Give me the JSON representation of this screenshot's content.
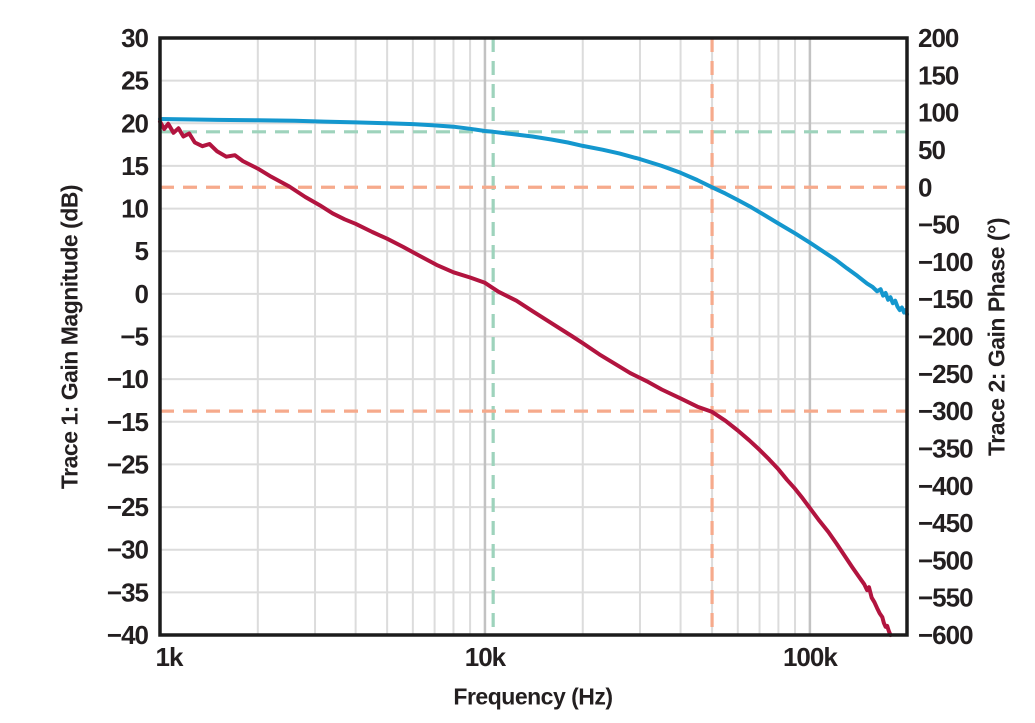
{
  "chart_data": {
    "type": "line",
    "title": "",
    "xlabel": "Frequency (Hz)",
    "x_axis": {
      "scale": "log",
      "range_hz": [
        1000,
        199000
      ],
      "major_ticks": [
        {
          "hz": 1000,
          "label": "1k"
        },
        {
          "hz": 10000,
          "label": "10k"
        },
        {
          "hz": 100000,
          "label": "100k"
        }
      ],
      "minor_gridlines_hz": [
        2000,
        3000,
        4000,
        5000,
        6000,
        7000,
        8000,
        9000,
        20000,
        30000,
        40000,
        50000,
        60000,
        70000,
        80000,
        90000
      ]
    },
    "y_axis_left": {
      "label": "Trace 1: Gain Magnitude (dB)",
      "range_db": [
        -40,
        30
      ],
      "ticks": [
        {
          "db": 30,
          "label": "30"
        },
        {
          "db": 25,
          "label": "25"
        },
        {
          "db": 20,
          "label": "20"
        },
        {
          "db": 15,
          "label": "15"
        },
        {
          "db": 10,
          "label": "10"
        },
        {
          "db": 5,
          "label": "5"
        },
        {
          "db": 0,
          "label": "0"
        },
        {
          "db": -5,
          "label": "−5"
        },
        {
          "db": -10,
          "label": "−10"
        },
        {
          "db": -15,
          "label": "−15"
        },
        {
          "db": -20,
          "label": "−25"
        },
        {
          "db": -25,
          "label": "−25"
        },
        {
          "db": -30,
          "label": "−30"
        },
        {
          "db": -35,
          "label": "−35"
        },
        {
          "db": -40,
          "label": "−40"
        }
      ]
    },
    "y_axis_right": {
      "label": "Trace 2: Gain Phase (°)",
      "range_deg": [
        -600,
        200
      ],
      "ticks": [
        {
          "deg": 200,
          "label": "200"
        },
        {
          "deg": 150,
          "label": "150"
        },
        {
          "deg": 100,
          "label": "100"
        },
        {
          "deg": 50,
          "label": "50"
        },
        {
          "deg": 0,
          "label": "0"
        },
        {
          "deg": -50,
          "label": "−50"
        },
        {
          "deg": -100,
          "label": "−100"
        },
        {
          "deg": -150,
          "label": "−150"
        },
        {
          "deg": -200,
          "label": "−200"
        },
        {
          "deg": -250,
          "label": "−250"
        },
        {
          "deg": -300,
          "label": "−300"
        },
        {
          "deg": -350,
          "label": "−350"
        },
        {
          "deg": -400,
          "label": "−400"
        },
        {
          "deg": -450,
          "label": "−450"
        },
        {
          "deg": -500,
          "label": "−500"
        },
        {
          "deg": -550,
          "label": "−550"
        },
        {
          "deg": -600,
          "label": "−600"
        }
      ]
    },
    "cursors": [
      {
        "id": "green",
        "color": "#9ED3BC",
        "vertical_hz": 10600,
        "horizontal_gain_db": 19.0
      },
      {
        "id": "orange",
        "color": "#F6AA8C",
        "vertical_hz": 50000,
        "horizontal_gain_db": 12.5,
        "horizontal_phase_deg": -300
      }
    ],
    "series": [
      {
        "name": "Trace 1: Gain Magnitude",
        "axis": "left",
        "unit": "dB",
        "color": "#1497CE",
        "points": [
          [
            1000,
            20.5
          ],
          [
            1200,
            20.45
          ],
          [
            1500,
            20.4
          ],
          [
            2000,
            20.35
          ],
          [
            2600,
            20.3
          ],
          [
            3200,
            20.2
          ],
          [
            4000,
            20.1
          ],
          [
            5000,
            20.0
          ],
          [
            6000,
            19.9
          ],
          [
            7000,
            19.75
          ],
          [
            8000,
            19.6
          ],
          [
            9000,
            19.35
          ],
          [
            10000,
            19.1
          ],
          [
            10600,
            19.0
          ],
          [
            12000,
            18.75
          ],
          [
            14000,
            18.45
          ],
          [
            16000,
            18.1
          ],
          [
            18000,
            17.75
          ],
          [
            20000,
            17.35
          ],
          [
            23000,
            16.9
          ],
          [
            26000,
            16.45
          ],
          [
            30000,
            15.8
          ],
          [
            35000,
            15.0
          ],
          [
            40000,
            14.2
          ],
          [
            45000,
            13.35
          ],
          [
            50000,
            12.5
          ],
          [
            55000,
            11.75
          ],
          [
            60000,
            11.0
          ],
          [
            66000,
            10.15
          ],
          [
            72000,
            9.3
          ],
          [
            80000,
            8.25
          ],
          [
            90000,
            7.1
          ],
          [
            100000,
            6.0
          ],
          [
            110000,
            4.95
          ],
          [
            120000,
            4.0
          ],
          [
            130000,
            3.0
          ],
          [
            140000,
            2.1
          ],
          [
            150000,
            1.2
          ],
          [
            156000,
            0.8
          ],
          [
            161000,
            0.3
          ],
          [
            165000,
            0.55
          ],
          [
            168000,
            -0.2
          ],
          [
            171000,
            0.1
          ],
          [
            174000,
            -0.7
          ],
          [
            177000,
            -0.4
          ],
          [
            180000,
            -1.1
          ],
          [
            183000,
            -0.8
          ],
          [
            186000,
            -1.5
          ],
          [
            189000,
            -1.9
          ],
          [
            192000,
            -1.6
          ],
          [
            195000,
            -2.2
          ],
          [
            197000,
            -1.9
          ],
          [
            199000,
            -2.4
          ]
        ]
      },
      {
        "name": "Trace 2: Gain Phase",
        "axis": "right",
        "unit": "°",
        "color": "#B2143F",
        "points": [
          [
            1000,
            88
          ],
          [
            1030,
            78
          ],
          [
            1060,
            85
          ],
          [
            1100,
            73
          ],
          [
            1140,
            79
          ],
          [
            1180,
            68
          ],
          [
            1230,
            72
          ],
          [
            1280,
            60
          ],
          [
            1350,
            55
          ],
          [
            1420,
            58
          ],
          [
            1500,
            48
          ],
          [
            1600,
            41
          ],
          [
            1700,
            43
          ],
          [
            1800,
            35
          ],
          [
            2000,
            25
          ],
          [
            2200,
            14
          ],
          [
            2500,
            1
          ],
          [
            2800,
            -13
          ],
          [
            3100,
            -24
          ],
          [
            3400,
            -35
          ],
          [
            3700,
            -43
          ],
          [
            4000,
            -49
          ],
          [
            4500,
            -60
          ],
          [
            5000,
            -69
          ],
          [
            5600,
            -80
          ],
          [
            6300,
            -92
          ],
          [
            7100,
            -104
          ],
          [
            8000,
            -114
          ],
          [
            9000,
            -121
          ],
          [
            10000,
            -128
          ],
          [
            11000,
            -140
          ],
          [
            12500,
            -152
          ],
          [
            14000,
            -166
          ],
          [
            16000,
            -182
          ],
          [
            18600,
            -200
          ],
          [
            20000,
            -209
          ],
          [
            22500,
            -224
          ],
          [
            25000,
            -236
          ],
          [
            28000,
            -249
          ],
          [
            31500,
            -260
          ],
          [
            35000,
            -271
          ],
          [
            40000,
            -283
          ],
          [
            45000,
            -294
          ],
          [
            50000,
            -301
          ],
          [
            55000,
            -313
          ],
          [
            60000,
            -326
          ],
          [
            65000,
            -339
          ],
          [
            70000,
            -352
          ],
          [
            75000,
            -365
          ],
          [
            80000,
            -378
          ],
          [
            85000,
            -392
          ],
          [
            90000,
            -404
          ],
          [
            95000,
            -417
          ],
          [
            100000,
            -430
          ],
          [
            107000,
            -447
          ],
          [
            114000,
            -462
          ],
          [
            121000,
            -478
          ],
          [
            128000,
            -494
          ],
          [
            135000,
            -509
          ],
          [
            141000,
            -521
          ],
          [
            147000,
            -532
          ],
          [
            150000,
            -540
          ],
          [
            152000,
            -536
          ],
          [
            155000,
            -550
          ],
          [
            158000,
            -556
          ],
          [
            161000,
            -564
          ],
          [
            164000,
            -571
          ],
          [
            167000,
            -576
          ],
          [
            169000,
            -584
          ],
          [
            171000,
            -589
          ],
          [
            173000,
            -588
          ],
          [
            175000,
            -595
          ],
          [
            177000,
            -600
          ]
        ]
      }
    ],
    "style": {
      "background": "#FFFFFF",
      "border_color": "#1C1C1C",
      "grid_minor_color": "#DCDCDC",
      "grid_major_color": "#C2C2C2",
      "tick_label_color": "#231F20"
    }
  }
}
